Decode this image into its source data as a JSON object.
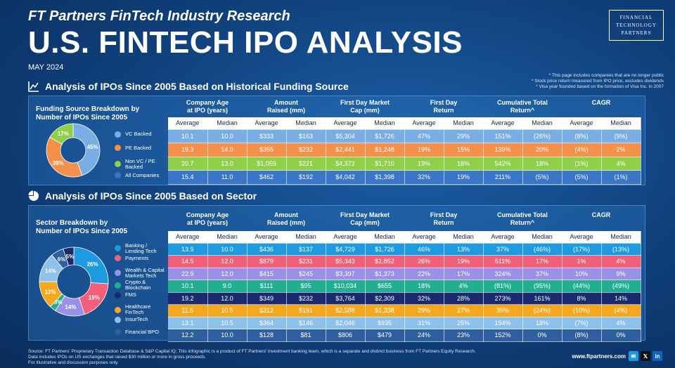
{
  "header": {
    "supertitle": "FT Partners FinTech Industry Research",
    "title": "U.S. FINTECH IPO ANALYSIS",
    "date": "MAY 2024",
    "logo_lines": [
      "FINANCIAL",
      "TECHNOLOGY",
      "PARTNERS"
    ],
    "notes": [
      "* This page includes companies that are no longer public",
      "* Stock price return measured from IPO price, excludes dividends",
      "* Visa year founded based on the formation of Visa Inc. in 2007"
    ]
  },
  "columns": {
    "groups": [
      "Company Age\nat IPO (years)",
      "Amount\nRaised (mm)",
      "First Day Market\nCap (mm)",
      "First Day\nReturn",
      "Cumulative Total\nReturn^",
      "CAGR"
    ],
    "sub": [
      "Average",
      "Median",
      "Average",
      "Median",
      "Average",
      "Median",
      "Average",
      "Median",
      "Average",
      "Median",
      "Average",
      "Median"
    ]
  },
  "section1": {
    "title": "Analysis of IPOs Since 2005 Based on Historical Funding Source",
    "panel_label": "Funding Source Breakdown by\nNumber of IPOs Since 2005",
    "rows": [
      {
        "label": "VC Backed",
        "color": "#78aee4",
        "values": [
          "10.1",
          "10.0",
          "$333",
          "$163",
          "$5,304",
          "$1,726",
          "47%",
          "29%",
          "151%",
          "(26%)",
          "(8%)",
          "(9%)"
        ]
      },
      {
        "label": "PE Backed",
        "color": "#f5904a",
        "values": [
          "19.3",
          "14.0",
          "$355",
          "$232",
          "$2,441",
          "$1,248",
          "19%",
          "15%",
          "139%",
          "20%",
          "(4%)",
          "2%"
        ]
      },
      {
        "label": "Non VC / PE Backed",
        "color": "#8fcf4a",
        "values": [
          "20.7",
          "13.0",
          "$1,059",
          "$221",
          "$4,372",
          "$1,710",
          "19%",
          "18%",
          "542%",
          "18%",
          "(1%)",
          "4%"
        ]
      },
      {
        "label": "All Companies",
        "color": "#3a75c8",
        "values": [
          "15.4",
          "11.0",
          "$462",
          "$192",
          "$4,042",
          "$1,398",
          "32%",
          "19%",
          "211%",
          "(5%)",
          "(5%)",
          "(1%)"
        ]
      }
    ],
    "pie": [
      {
        "label": "45%",
        "value": 45,
        "color": "#78aee4"
      },
      {
        "label": "39%",
        "value": 39,
        "color": "#f5904a"
      },
      {
        "label": "17%",
        "value": 17,
        "color": "#8fcf4a"
      }
    ]
  },
  "section2": {
    "title": "Analysis of IPOs Since 2005 Based on Sector",
    "panel_label": "Sector Breakdown by\nNumber of IPOs Since 2005",
    "rows": [
      {
        "label": "Banking / Lending Tech",
        "color": "#1e9ae0",
        "values": [
          "13.9",
          "10.0",
          "$436",
          "$137",
          "$4,729",
          "$1,726",
          "46%",
          "13%",
          "37%",
          "(46%)",
          "(17%)",
          "(13%)"
        ]
      },
      {
        "label": "Payments",
        "color": "#f0607a",
        "values": [
          "14.5",
          "12.0",
          "$879",
          "$231",
          "$5,343",
          "$1,852",
          "26%",
          "19%",
          "511%",
          "17%",
          "1%",
          "4%"
        ]
      },
      {
        "label": "Wealth & Capital Markets Tech",
        "color": "#9a90e8",
        "values": [
          "22.9",
          "12.0",
          "$415",
          "$245",
          "$3,397",
          "$1,373",
          "22%",
          "17%",
          "324%",
          "37%",
          "10%",
          "9%"
        ]
      },
      {
        "label": "Crypto & Blockchain",
        "color": "#20b090",
        "values": [
          "10.1",
          "9.0",
          "$111",
          "$95",
          "$10,034",
          "$655",
          "18%",
          "4%",
          "(81%)",
          "(95%)",
          "(44%)",
          "(49%)"
        ]
      },
      {
        "label": "FMS",
        "color": "#1a2a6e",
        "values": [
          "19.2",
          "12.0",
          "$349",
          "$232",
          "$3,764",
          "$2,309",
          "32%",
          "28%",
          "273%",
          "161%",
          "8%",
          "14%"
        ]
      },
      {
        "label": "Healthcare FinTech",
        "color": "#f5a81c",
        "values": [
          "11.6",
          "10.5",
          "$312",
          "$191",
          "$2,588",
          "$1,338",
          "29%",
          "27%",
          "35%",
          "(24%)",
          "(10%)",
          "(4%)"
        ]
      },
      {
        "label": "InsurTech",
        "color": "#8ec0ec",
        "values": [
          "13.1",
          "10.5",
          "$364",
          "$146",
          "$2,046",
          "$935",
          "31%",
          "25%",
          "194%",
          "18%",
          "(7%)",
          "4%"
        ]
      },
      {
        "label": "Financial BPO",
        "color": "#2e5f9e",
        "values": [
          "12.2",
          "10.0",
          "$128",
          "$81",
          "$806",
          "$479",
          "24%",
          "23%",
          "152%",
          "0%",
          "(8%)",
          "0%"
        ]
      }
    ],
    "pie": [
      {
        "label": "26%",
        "value": 26,
        "color": "#1e9ae0"
      },
      {
        "label": "19%",
        "value": 19,
        "color": "#f0607a"
      },
      {
        "label": "14%",
        "value": 14,
        "color": "#9a90e8"
      },
      {
        "label": "3%",
        "value": 3,
        "color": "#20b090"
      },
      {
        "label": "13%",
        "value": 13,
        "color": "#f5a81c"
      },
      {
        "label": "14%",
        "value": 14,
        "color": "#8ec0ec"
      },
      {
        "label": "6%",
        "value": 6,
        "color": "#2e5f9e"
      },
      {
        "label": "5%",
        "value": 5,
        "color": "#1a2a6e"
      }
    ]
  },
  "footer": {
    "lines": [
      "Source: FT Partners' Proprietary Transaction Database & S&P Capital IQ; This infographic is a product of FT Partners' investment banking team, which is a separate and distinct business from FT Partners Equity Research.",
      "Data includes IPOs on US exchanges that raised $30 million or more in gross proceeds.",
      "For illustrative and discussion purposes only."
    ],
    "site": "www.ftpartners.com",
    "socials": [
      {
        "name": "email-icon",
        "glyph": "✉",
        "color": "#1e9ae0"
      },
      {
        "name": "x-icon",
        "glyph": "𝕏",
        "color": "#111111"
      },
      {
        "name": "linkedin-icon",
        "glyph": "in",
        "color": "#0a66c2"
      }
    ]
  }
}
